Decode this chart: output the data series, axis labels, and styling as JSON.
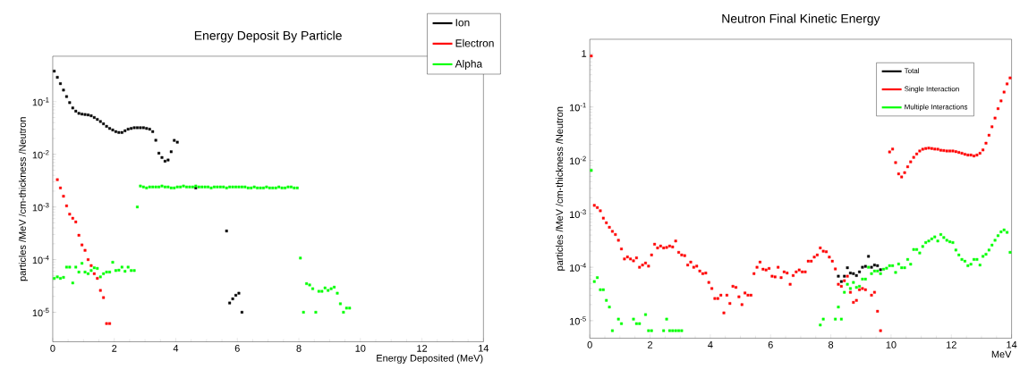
{
  "chart_data": [
    {
      "type": "scatter",
      "title": "Energy Deposit By Particle",
      "xlabel": "Energy Deposited (MeV)",
      "ylabel": "particles /MeV /cm-thickness /Neutron",
      "log": true,
      "marker": "square",
      "legend": "top right",
      "xlim": [
        0,
        14
      ],
      "ylim": [
        2.75e-06,
        0.73
      ],
      "xticks": [
        0,
        2,
        4,
        6,
        8,
        10,
        12,
        14
      ],
      "yticks": [
        {
          "value": 1e-05,
          "label": "10$^{-5}$"
        },
        {
          "value": 0.0001,
          "label": "10$^{-4}$"
        },
        {
          "value": 0.001,
          "label": "10$^{-3}$"
        },
        {
          "value": 0.01,
          "label": "10$^{-2}$"
        },
        {
          "value": 0.1,
          "label": "10$^{-1}$"
        }
      ],
      "series": [
        {
          "name": "Ion",
          "color": "#000000",
          "x": [
            0.05,
            0.15,
            0.25,
            0.35,
            0.45,
            0.55,
            0.65,
            0.75,
            0.85,
            0.95,
            1.05,
            1.15,
            1.25,
            1.35,
            1.45,
            1.55,
            1.65,
            1.75,
            1.85,
            1.95,
            2.05,
            2.15,
            2.25,
            2.35,
            2.45,
            2.55,
            2.65,
            2.75,
            2.85,
            2.95,
            3.05,
            3.15,
            3.25,
            3.35,
            3.45,
            3.55,
            3.65,
            3.75,
            3.85,
            3.95,
            4.05,
            4.25,
            4.65,
            4.85,
            5.05,
            5.45,
            5.65,
            5.75,
            5.85,
            5.95,
            6.05,
            6.15
          ],
          "values": [
            0.38,
            0.29,
            0.22,
            0.166,
            0.125,
            0.096,
            0.076,
            0.066,
            0.06,
            0.058,
            0.057,
            0.056,
            0.054,
            0.05,
            0.046,
            0.042,
            0.038,
            0.034,
            0.031,
            0.029,
            0.027,
            0.026,
            0.026,
            0.028,
            0.03,
            0.031,
            0.032,
            0.032,
            0.032,
            0.032,
            0.031,
            0.03,
            0.027,
            0.0185,
            0.0105,
            0.0087,
            0.0074,
            0.0078,
            0.0112,
            0.0184,
            0.017,
            null,
            0.0023,
            null,
            null,
            null,
            0.00035,
            1.5e-05,
            1.8e-05,
            2.1e-05,
            2.3e-05,
            1e-05
          ]
        },
        {
          "name": "Electron",
          "color": "#ff0000",
          "x": [
            0.15,
            0.25,
            0.35,
            0.45,
            0.55,
            0.65,
            0.75,
            0.85,
            0.95,
            1.05,
            1.15,
            1.25,
            1.35,
            1.45,
            1.55,
            1.65,
            1.75,
            1.85
          ],
          "values": [
            0.0033,
            0.0023,
            0.0016,
            0.00105,
            0.00073,
            0.00061,
            0.00052,
            0.00029,
            0.00019,
            0.00015,
            0.0001,
            7.7e-05,
            5.4e-05,
            4.4e-05,
            2.6e-05,
            1.9e-05,
            6.1e-06,
            6.1e-06
          ]
        },
        {
          "name": "Alpha",
          "color": "#00ff00",
          "x": [
            0.05,
            0.15,
            0.25,
            0.35,
            0.45,
            0.55,
            0.65,
            0.75,
            0.85,
            0.95,
            1.05,
            1.15,
            1.25,
            1.35,
            1.45,
            1.55,
            1.65,
            1.75,
            1.85,
            1.95,
            2.05,
            2.15,
            2.25,
            2.35,
            2.45,
            2.55,
            2.65,
            2.75,
            2.85,
            2.95,
            3.05,
            3.15,
            3.25,
            3.35,
            3.45,
            3.55,
            3.65,
            3.75,
            3.85,
            3.95,
            4.05,
            4.15,
            4.25,
            4.35,
            4.45,
            4.55,
            4.65,
            4.75,
            4.85,
            4.95,
            5.05,
            5.15,
            5.25,
            5.35,
            5.45,
            5.55,
            5.65,
            5.75,
            5.85,
            5.95,
            6.05,
            6.15,
            6.25,
            6.35,
            6.45,
            6.55,
            6.65,
            6.75,
            6.85,
            6.95,
            7.05,
            7.15,
            7.25,
            7.35,
            7.45,
            7.55,
            7.65,
            7.75,
            7.85,
            7.95,
            8.05,
            8.15,
            8.25,
            8.35,
            8.45,
            8.55,
            8.65,
            8.75,
            8.85,
            8.95,
            9.05,
            9.15,
            9.25,
            9.35,
            9.45,
            9.55,
            9.65
          ],
          "values": [
            4.4e-05,
            4.7e-05,
            4.4e-05,
            4.6e-05,
            7.2e-05,
            7.2e-05,
            3.6e-05,
            7.2e-05,
            5.8e-05,
            8.5e-05,
            5.8e-05,
            5.4e-05,
            6.2e-05,
            7e-05,
            6.8e-05,
            4.7e-05,
            5.4e-05,
            5.8e-05,
            5.8e-05,
            8.9e-05,
            6.2e-05,
            6.3e-05,
            7.2e-05,
            6e-05,
            7.2e-05,
            6.2e-05,
            6.2e-05,
            0.001,
            0.0025,
            0.0024,
            0.0023,
            0.0024,
            0.0024,
            0.0024,
            0.0024,
            0.0025,
            0.0024,
            0.0024,
            0.0023,
            0.0023,
            0.0024,
            0.0024,
            0.0025,
            0.0024,
            0.0024,
            0.0024,
            0.0025,
            0.0024,
            0.0024,
            0.0024,
            0.0024,
            0.0023,
            0.0024,
            0.0024,
            0.0024,
            0.0024,
            0.0023,
            0.0024,
            0.0024,
            0.0024,
            0.0024,
            0.0024,
            0.0024,
            0.0023,
            0.0023,
            0.0024,
            0.0023,
            0.0023,
            0.0023,
            0.0024,
            0.0023,
            0.0023,
            0.0023,
            0.0024,
            0.0023,
            0.0023,
            0.0024,
            0.0024,
            0.0023,
            0.0023,
            0.000107,
            1e-05,
            3.5e-05,
            3.3e-05,
            2.8e-05,
            1e-05,
            2.5e-05,
            2.5e-05,
            2.9e-05,
            2.6e-05,
            2.8e-05,
            3e-05,
            2.3e-05,
            1.45e-05,
            1e-05,
            1.2e-05,
            1.2e-05
          ]
        }
      ]
    },
    {
      "type": "scatter",
      "title": "Neutron Final Kinetic Energy",
      "xlabel": "MeV",
      "ylabel": "particles /MeV /cm-thickness /Neutron",
      "log": true,
      "marker": "square",
      "legend": "top right",
      "xlim": [
        0,
        14
      ],
      "ylim": [
        4.7e-06,
        1.85
      ],
      "xticks": [
        0,
        2,
        4,
        6,
        8,
        10,
        12,
        14
      ],
      "yticks": [
        {
          "value": 1e-05,
          "label": "10$^{-5}$"
        },
        {
          "value": 0.0001,
          "label": "10$^{-4}$"
        },
        {
          "value": 0.001,
          "label": "10$^{-3}$"
        },
        {
          "value": 0.01,
          "label": "10$^{-2}$"
        },
        {
          "value": 0.1,
          "label": "10$^{-1}$"
        },
        1
      ],
      "series": [
        {
          "name": "Total",
          "color": "#000000",
          "x": [
            8.25,
            8.35,
            8.45,
            8.55,
            8.65,
            8.75,
            8.85,
            8.95,
            9.05,
            9.15,
            9.25,
            9.35,
            9.45,
            9.55,
            9.65
          ],
          "values": [
            6.8e-05,
            5.4e-05,
            6.8e-05,
            9.8e-05,
            7.8e-05,
            7.6e-05,
            7e-05,
            8.2e-05,
            0.0001,
            0.000104,
            0.00016,
            0.0001,
            0.00011,
            0.000107,
            9e-05
          ]
        },
        {
          "name": "Single Interaction",
          "color": "#ff0000",
          "x": [
            0.05,
            0.15,
            0.25,
            0.35,
            0.45,
            0.55,
            0.65,
            0.75,
            0.85,
            0.95,
            1.05,
            1.15,
            1.25,
            1.35,
            1.45,
            1.55,
            1.65,
            1.75,
            1.85,
            1.95,
            2.05,
            2.15,
            2.25,
            2.35,
            2.45,
            2.55,
            2.65,
            2.75,
            2.85,
            2.95,
            3.05,
            3.15,
            3.25,
            3.35,
            3.45,
            3.55,
            3.65,
            3.75,
            3.85,
            3.95,
            4.05,
            4.15,
            4.25,
            4.35,
            4.45,
            4.55,
            4.65,
            4.75,
            4.85,
            4.95,
            5.05,
            5.15,
            5.25,
            5.35,
            5.45,
            5.55,
            5.65,
            5.75,
            5.85,
            5.95,
            6.05,
            6.15,
            6.25,
            6.35,
            6.45,
            6.55,
            6.65,
            6.75,
            6.85,
            6.95,
            7.05,
            7.15,
            7.25,
            7.35,
            7.45,
            7.55,
            7.65,
            7.75,
            7.85,
            7.95,
            8.05,
            8.15,
            8.25,
            8.35,
            8.45,
            8.55,
            8.65,
            8.75,
            8.85,
            8.95,
            9.05,
            9.15,
            9.35,
            9.45,
            9.55,
            9.65,
            9.95,
            10.05,
            10.15,
            10.25,
            10.35,
            10.45,
            10.55,
            10.65,
            10.75,
            10.85,
            10.95,
            11.05,
            11.15,
            11.25,
            11.35,
            11.45,
            11.55,
            11.65,
            11.75,
            11.85,
            11.95,
            12.05,
            12.15,
            12.25,
            12.35,
            12.45,
            12.55,
            12.65,
            12.75,
            12.85,
            12.95,
            13.05,
            13.15,
            13.25,
            13.35,
            13.45,
            13.55,
            13.65,
            13.75,
            13.85,
            13.95
          ],
          "values": [
            0.9,
            0.00144,
            0.00131,
            0.00114,
            0.00083,
            0.00068,
            0.00056,
            0.00047,
            0.00041,
            0.00032,
            0.00022,
            0.000143,
            0.000156,
            0.000143,
            0.000132,
            0.00015,
            0.0001,
            0.00011,
            0.00012,
            0.000105,
            0.00017,
            0.00027,
            0.00023,
            0.00025,
            0.00023,
            0.000235,
            0.00025,
            0.00024,
            0.00031,
            0.00019,
            0.00017,
            0.000165,
            0.00011,
            0.000125,
            0.0001,
            0.000105,
            8.5e-05,
            7.6e-05,
            7.8e-05,
            5.2e-05,
            4e-05,
            2.6e-05,
            2.6e-05,
            3e-05,
            1.4e-05,
            3e-05,
            2.1e-05,
            4.4e-05,
            4.2e-05,
            2.8e-05,
            2e-05,
            3.3e-05,
            3e-05,
            3e-05,
            7.6e-05,
            0.0001,
            0.000125,
            9.2e-05,
            8.9e-05,
            9.5e-05,
            6.8e-05,
            6.6e-05,
            0.0001,
            6.4e-05,
            8.2e-05,
            7.8e-05,
            4.8e-05,
            7e-05,
            8.2e-05,
            8.9e-05,
            8.2e-05,
            8.2e-05,
            0.00013,
            0.00013,
            0.000155,
            0.00017,
            0.00023,
            0.0002,
            0.000195,
            0.000155,
            0.00013,
            9.3e-05,
            4.8e-05,
            4.4e-05,
            5.6e-05,
            6.8e-05,
            3.4e-05,
            2.2e-05,
            2.4e-05,
            3.8e-05,
            4e-05,
            3.8e-05,
            3e-05,
            3.4e-05,
            1.5e-05,
            6.5e-06,
            0.0144,
            0.0163,
            0.0091,
            0.0056,
            0.0049,
            0.0059,
            0.0076,
            0.0094,
            0.0114,
            0.0132,
            0.015,
            0.0162,
            0.0167,
            0.017,
            0.0167,
            0.0163,
            0.0162,
            0.0155,
            0.0153,
            0.015,
            0.015,
            0.015,
            0.0146,
            0.0141,
            0.0136,
            0.013,
            0.0126,
            0.0126,
            0.0121,
            0.0126,
            0.0136,
            0.0157,
            0.021,
            0.0296,
            0.0426,
            0.062,
            0.093,
            0.13,
            0.19,
            0.27,
            0.35
          ]
        },
        {
          "name": "Multiple Interactions",
          "color": "#00ff00",
          "x": [
            0.05,
            0.15,
            0.25,
            0.35,
            0.45,
            0.55,
            0.65,
            0.75,
            0.95,
            1.05,
            1.45,
            1.55,
            1.65,
            1.85,
            1.95,
            2.05,
            2.45,
            2.55,
            2.65,
            2.75,
            2.85,
            2.95,
            3.05,
            7.65,
            7.75,
            8.15,
            8.25,
            8.35,
            8.45,
            8.55,
            8.65,
            8.75,
            8.85,
            8.95,
            9.05,
            9.15,
            9.25,
            9.35,
            9.45,
            9.55,
            9.65,
            9.75,
            9.85,
            9.95,
            10.05,
            10.15,
            10.25,
            10.35,
            10.45,
            10.55,
            10.65,
            10.75,
            10.85,
            10.95,
            11.05,
            11.15,
            11.25,
            11.35,
            11.45,
            11.55,
            11.65,
            11.75,
            11.85,
            11.95,
            12.05,
            12.15,
            12.25,
            12.35,
            12.45,
            12.55,
            12.65,
            12.75,
            12.85,
            12.95,
            13.05,
            13.15,
            13.25,
            13.35,
            13.45,
            13.55,
            13.65,
            13.75,
            13.85,
            13.95
          ],
          "values": [
            0.0065,
            5.4e-05,
            6.4e-05,
            3.8e-05,
            3.8e-05,
            2.4e-05,
            1.8e-05,
            6.5e-06,
            1.07e-05,
            8.8e-06,
            1.07e-05,
            8.8e-06,
            8.8e-06,
            1.3e-05,
            6.5e-06,
            6.5e-06,
            6.5e-06,
            1.07e-05,
            6.5e-06,
            6.5e-06,
            6.5e-06,
            6.5e-06,
            6.5e-06,
            8.3e-06,
            1.07e-05,
            1.07e-05,
            1.8e-05,
            1.07e-05,
            3.4e-05,
            4.8e-05,
            4e-05,
            5.2e-05,
            4.2e-05,
            4.4e-05,
            6e-05,
            6e-05,
            0.0001,
            7.6e-05,
            8.5e-05,
            8.5e-05,
            7.6e-05,
            9.2e-05,
            9.6e-05,
            0.000107,
            0.000107,
            8e-05,
            0.000115,
            9.8e-05,
            9.8e-05,
            0.00014,
            0.000114,
            0.000215,
            0.000215,
            0.000185,
            0.000245,
            0.00029,
            0.00031,
            0.00034,
            0.00037,
            0.00031,
            0.00041,
            0.00036,
            0.00032,
            0.0003,
            0.00029,
            0.00021,
            0.00017,
            0.00014,
            0.00013,
            0.000107,
            0.000114,
            0.00014,
            0.00014,
            0.00011,
            0.00016,
            0.000175,
            0.00021,
            0.00026,
            0.00032,
            0.00039,
            0.00046,
            0.0005,
            0.00045,
            0.00019
          ]
        }
      ]
    }
  ]
}
